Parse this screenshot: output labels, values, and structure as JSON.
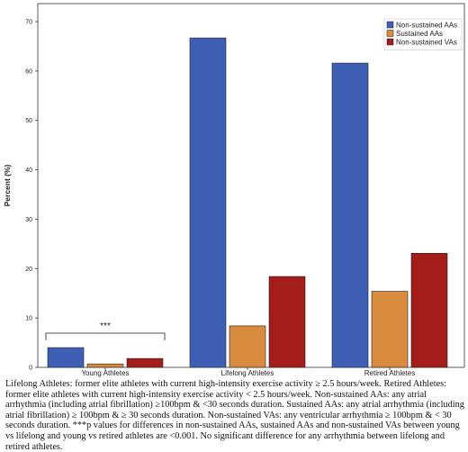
{
  "chart_data": {
    "type": "bar",
    "ylabel": "Percent (%)",
    "xlabel": "",
    "ylim": [
      0,
      70
    ],
    "yticks": [
      0,
      10,
      20,
      30,
      40,
      50,
      60,
      70
    ],
    "categories": [
      "Young Athletes",
      "Lifelong Athletes",
      "Retired Athletes"
    ],
    "series": [
      {
        "name": "Non-sustained AAs",
        "color": "#3f5fb5",
        "values": [
          4.0,
          66.7,
          61.6
        ]
      },
      {
        "name": "Sustained AAs",
        "color": "#d98b3f",
        "values": [
          0.7,
          8.4,
          15.4
        ]
      },
      {
        "name": "Non-sustained VAs",
        "color": "#a31d1a",
        "values": [
          1.8,
          18.4,
          23.1
        ]
      }
    ],
    "legend_position": "top-right",
    "grid": false,
    "annotation": {
      "text": "***",
      "group": "Young Athletes"
    }
  },
  "caption": "Lifelong Athletes: former elite athletes with current high-intensity exercise activity ≥ 2.5 hours/week. Retired Athletes: former elite athletes with current high-intensity exercise activity < 2.5 hours/week. Non-sustained AAs: any atrial arrhythmia (including atrial fibrillation) ≥100bpm & <30 seconds duration. Sustained AAs: any atrial arrhythmia (including atrial fibrillation) ≥ 100bpm & ≥ 30 seconds duration. Non-sustained VAs: any ventricular arrhythmia ≥ 100bpm & < 30 seconds duration. ***p values for differences in non-sustained AAs, sustained AAs and non-sustained VAs between young vs lifelong and young vs retired athletes are <0.001. No significant difference for any arrhythmia between lifelong and retired athletes."
}
